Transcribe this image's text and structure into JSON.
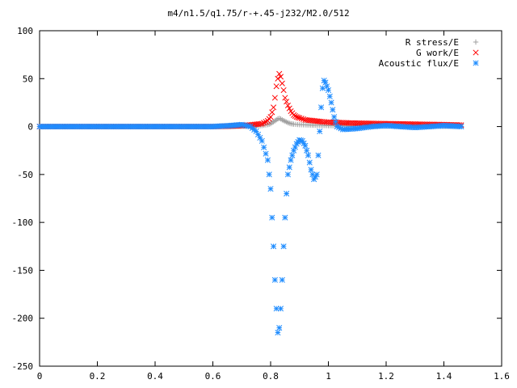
{
  "chart_data": {
    "type": "scatter",
    "title": "m4/n1.5/q1.75/r-+.45-j232/M2.0/512",
    "xlabel": "",
    "ylabel": "",
    "xlim": [
      0,
      1.6
    ],
    "ylim": [
      -250,
      100
    ],
    "x_ticks": [
      "0",
      "0.2",
      "0.4",
      "0.6",
      "0.8",
      "1",
      "1.2",
      "1.4",
      "1.6"
    ],
    "y_ticks": [
      "100",
      "50",
      "0",
      "-50",
      "-100",
      "-150",
      "-200",
      "-250"
    ],
    "legend_position": "top-right",
    "grid": false,
    "series": [
      {
        "name": "R stress/E",
        "marker": "plus",
        "color": "#a0a0a0",
        "points": [
          [
            0.0,
            0
          ],
          [
            0.1,
            0
          ],
          [
            0.2,
            0
          ],
          [
            0.3,
            0
          ],
          [
            0.4,
            0
          ],
          [
            0.5,
            0
          ],
          [
            0.6,
            0
          ],
          [
            0.66,
            0
          ],
          [
            0.7,
            0.3
          ],
          [
            0.74,
            0.5
          ],
          [
            0.77,
            1
          ],
          [
            0.79,
            2
          ],
          [
            0.8,
            3
          ],
          [
            0.81,
            5
          ],
          [
            0.82,
            7
          ],
          [
            0.825,
            8
          ],
          [
            0.83,
            8.5
          ],
          [
            0.835,
            8
          ],
          [
            0.84,
            7
          ],
          [
            0.85,
            5.5
          ],
          [
            0.86,
            4
          ],
          [
            0.87,
            3
          ],
          [
            0.88,
            2.5
          ],
          [
            0.9,
            2
          ],
          [
            0.92,
            1.8
          ],
          [
            0.95,
            1.5
          ],
          [
            1.0,
            1
          ],
          [
            1.05,
            0.8
          ],
          [
            1.1,
            0.6
          ],
          [
            1.2,
            0.5
          ],
          [
            1.3,
            0.4
          ],
          [
            1.4,
            0.3
          ],
          [
            1.46,
            0.2
          ]
        ]
      },
      {
        "name": "G work/E",
        "marker": "x",
        "color": "#ff0000",
        "points": [
          [
            0.0,
            0
          ],
          [
            0.1,
            0
          ],
          [
            0.2,
            0
          ],
          [
            0.3,
            0
          ],
          [
            0.4,
            0
          ],
          [
            0.5,
            0
          ],
          [
            0.6,
            0
          ],
          [
            0.66,
            0.5
          ],
          [
            0.7,
            1
          ],
          [
            0.74,
            2
          ],
          [
            0.77,
            3
          ],
          [
            0.79,
            6
          ],
          [
            0.8,
            10
          ],
          [
            0.81,
            20
          ],
          [
            0.815,
            30
          ],
          [
            0.82,
            42
          ],
          [
            0.825,
            50
          ],
          [
            0.83,
            55
          ],
          [
            0.835,
            52
          ],
          [
            0.84,
            45
          ],
          [
            0.845,
            38
          ],
          [
            0.85,
            30
          ],
          [
            0.86,
            22
          ],
          [
            0.87,
            16
          ],
          [
            0.88,
            12
          ],
          [
            0.89,
            10
          ],
          [
            0.9,
            9
          ],
          [
            0.92,
            7
          ],
          [
            0.95,
            6
          ],
          [
            0.98,
            5
          ],
          [
            1.0,
            4.5
          ],
          [
            1.05,
            4
          ],
          [
            1.1,
            3.5
          ],
          [
            1.2,
            3
          ],
          [
            1.3,
            2.5
          ],
          [
            1.4,
            2
          ],
          [
            1.46,
            1.5
          ]
        ]
      },
      {
        "name": "Acoustic flux/E",
        "marker": "star",
        "color": "#1e8cff",
        "points": [
          [
            0.0,
            0
          ],
          [
            0.1,
            0
          ],
          [
            0.2,
            0
          ],
          [
            0.3,
            0
          ],
          [
            0.4,
            0
          ],
          [
            0.5,
            0
          ],
          [
            0.6,
            0
          ],
          [
            0.66,
            1
          ],
          [
            0.7,
            2
          ],
          [
            0.73,
            0
          ],
          [
            0.75,
            -5
          ],
          [
            0.77,
            -15
          ],
          [
            0.79,
            -35
          ],
          [
            0.8,
            -65
          ],
          [
            0.805,
            -95
          ],
          [
            0.81,
            -125
          ],
          [
            0.815,
            -160
          ],
          [
            0.82,
            -190
          ],
          [
            0.825,
            -215
          ],
          [
            0.83,
            -210
          ],
          [
            0.835,
            -190
          ],
          [
            0.84,
            -160
          ],
          [
            0.845,
            -125
          ],
          [
            0.85,
            -95
          ],
          [
            0.855,
            -70
          ],
          [
            0.86,
            -50
          ],
          [
            0.87,
            -35
          ],
          [
            0.88,
            -25
          ],
          [
            0.89,
            -18
          ],
          [
            0.9,
            -14
          ],
          [
            0.91,
            -15
          ],
          [
            0.92,
            -20
          ],
          [
            0.93,
            -30
          ],
          [
            0.94,
            -45
          ],
          [
            0.95,
            -55
          ],
          [
            0.96,
            -50
          ],
          [
            0.965,
            -30
          ],
          [
            0.97,
            -5
          ],
          [
            0.975,
            20
          ],
          [
            0.98,
            40
          ],
          [
            0.985,
            48
          ],
          [
            0.99,
            46
          ],
          [
            1.0,
            38
          ],
          [
            1.01,
            25
          ],
          [
            1.02,
            10
          ],
          [
            1.03,
            0
          ],
          [
            1.05,
            -3
          ],
          [
            1.1,
            -2
          ],
          [
            1.15,
            0
          ],
          [
            1.2,
            1
          ],
          [
            1.25,
            0
          ],
          [
            1.3,
            -1
          ],
          [
            1.35,
            0
          ],
          [
            1.4,
            1
          ],
          [
            1.46,
            0
          ]
        ]
      }
    ]
  }
}
